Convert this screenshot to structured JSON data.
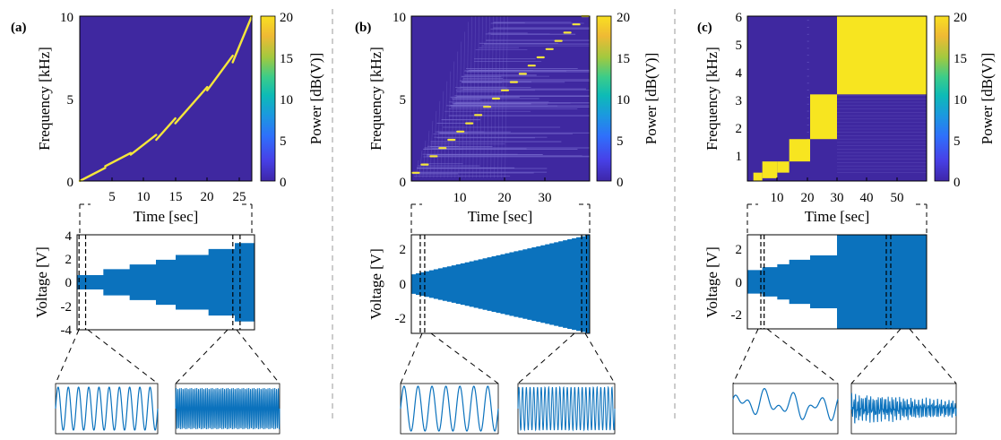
{
  "colors": {
    "background": "#3f28a0",
    "chirp": "#f5e63a",
    "spectral_leak": "#7a6ed0",
    "yellow_block": "#f7e520",
    "waveform": "#0b72bd",
    "colorbar": [
      "#3e26a8",
      "#4741e8",
      "#2f6ffb",
      "#1b99df",
      "#0dbbb6",
      "#3bcc8a",
      "#a2c93f",
      "#efba34",
      "#f9e021"
    ]
  },
  "chart_data": [
    {
      "panel": "(a)",
      "type": "heatmap",
      "xlabel": "Time [sec]",
      "ylabel": "Frequency [kHz]",
      "xlim": [
        0,
        27
      ],
      "ylim": [
        0,
        10
      ],
      "xticks": [
        "5",
        "10",
        "15",
        "20",
        "25"
      ],
      "yticks": [
        "0",
        "5",
        "10"
      ],
      "colorbar": {
        "label": "Power [dB(V)]",
        "ticks": [
          "0",
          "5",
          "10",
          "15",
          "20"
        ],
        "range": [
          0,
          20
        ]
      },
      "ridges": [
        {
          "t": [
            0,
            4
          ],
          "f": [
            0,
            0.8
          ]
        },
        {
          "t": [
            4,
            8
          ],
          "f": [
            0.9,
            1.7
          ]
        },
        {
          "t": [
            8,
            12
          ],
          "f": [
            1.6,
            2.8
          ]
        },
        {
          "t": [
            12,
            15
          ],
          "f": [
            2.5,
            3.8
          ]
        },
        {
          "t": [
            15,
            20
          ],
          "f": [
            3.5,
            5.7
          ]
        },
        {
          "t": [
            20,
            24
          ],
          "f": [
            5.5,
            7.6
          ]
        },
        {
          "t": [
            24,
            27
          ],
          "f": [
            7.2,
            10
          ]
        }
      ]
    },
    {
      "panel": "(a)",
      "type": "area",
      "ylabel": "Voltage [V]",
      "xlim": [
        0,
        27
      ],
      "ylim": [
        -4,
        4
      ],
      "yticks": [
        "4",
        "2",
        "0",
        "-2",
        "-4"
      ],
      "envelope": {
        "t": [
          0,
          4,
          8,
          12,
          15,
          20,
          24,
          27
        ],
        "amplitude": [
          0.6,
          1.1,
          1.5,
          1.9,
          2.3,
          2.8,
          3.3,
          3.3
        ]
      },
      "dashed_marks_t": [
        0.3,
        1.3,
        23.7,
        24.8
      ]
    },
    {
      "panel": "(b)",
      "type": "heatmap",
      "xlabel": "Time [sec]",
      "ylabel": "Frequency [kHz]",
      "xlim": [
        0,
        40
      ],
      "ylim": [
        0,
        10
      ],
      "xticks": [
        "10",
        "20",
        "30"
      ],
      "yticks": [
        "0",
        "5",
        "10"
      ],
      "colorbar": {
        "label": "Power [dB(V)]",
        "ticks": [
          "0",
          "5",
          "10",
          "15",
          "20"
        ],
        "range": [
          0,
          20
        ]
      },
      "tone_steps": {
        "count": 20,
        "t_start": 0,
        "t_step": 2,
        "f_start": 0.5,
        "f_step": 0.5
      }
    },
    {
      "panel": "(b)",
      "type": "area",
      "ylabel": "Voltage [V]",
      "xlim": [
        0,
        40
      ],
      "ylim": [
        -3.2,
        3.2
      ],
      "yticks": [
        "2",
        "0",
        "-2"
      ],
      "envelope": {
        "t": [
          0,
          40
        ],
        "amplitude": [
          0.6,
          3.2
        ]
      },
      "dashed_marks_t": [
        2,
        3,
        38.2,
        39.3
      ]
    },
    {
      "panel": "(c)",
      "type": "heatmap",
      "xlabel": "Time [sec]",
      "ylabel": "Frequency [kHz]",
      "xlim": [
        0,
        60
      ],
      "ylim": [
        0.1,
        6
      ],
      "xticks": [
        "10",
        "20",
        "30",
        "40",
        "50"
      ],
      "yticks": [
        "1",
        "2",
        "3",
        "4",
        "5",
        "6"
      ],
      "colorbar": {
        "label": "Power [dB(V)]",
        "ticks": [
          "0",
          "5",
          "10",
          "15",
          "20"
        ],
        "range": [
          0,
          20
        ]
      },
      "blocks": [
        {
          "t": [
            2,
            5
          ],
          "f": [
            0.1,
            0.4
          ]
        },
        {
          "t": [
            5,
            10
          ],
          "f": [
            0.2,
            0.8
          ]
        },
        {
          "t": [
            10,
            14
          ],
          "f": [
            0.4,
            0.8
          ]
        },
        {
          "t": [
            14,
            21
          ],
          "f": [
            0.8,
            1.6
          ]
        },
        {
          "t": [
            21,
            30
          ],
          "f": [
            1.6,
            3.2
          ]
        },
        {
          "t": [
            30,
            60
          ],
          "f": [
            3.2,
            6
          ]
        }
      ]
    },
    {
      "panel": "(c)",
      "type": "area",
      "ylabel": "Voltage [V]",
      "xlim": [
        0,
        60
      ],
      "ylim": [
        -3.2,
        3.2
      ],
      "yticks": [
        "2",
        "0",
        "-2"
      ],
      "envelope": {
        "t": [
          0,
          5,
          10,
          14,
          21,
          30,
          60
        ],
        "amplitude": [
          0.8,
          1.0,
          1.2,
          1.5,
          1.8,
          3.2,
          3.2
        ]
      },
      "dashed_marks_t": [
        4.5,
        5.6,
        46.5,
        48
      ]
    }
  ]
}
